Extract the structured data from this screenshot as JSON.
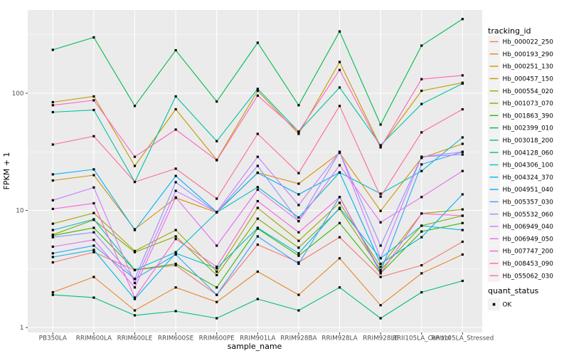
{
  "figure": {
    "background": "#FFFFFF",
    "panel_background": "#EBEBEB",
    "gridline_color": "#FFFFFF",
    "tick_color": "#333333",
    "tick_label_color": "#4D4D4D",
    "point_color": "#000000",
    "legend_key_background": "#F2F2F2"
  },
  "chart_data": {
    "type": "line",
    "title": "",
    "xlabel": "sample_name",
    "ylabel": "FPKM + 1",
    "y_scale": "log10",
    "y_ticks": [
      1,
      10,
      100
    ],
    "y_tick_labels": [
      "1",
      "10",
      "100"
    ],
    "y_minor_ticks": [
      3.1623,
      31.623,
      316.23
    ],
    "ylim": [
      0.9,
      540
    ],
    "grid": true,
    "legend_position": "right",
    "marker": "black-square",
    "legend_title": "tracking_id",
    "quant_legend": {
      "title": "quant_status",
      "items": [
        {
          "label": "OK",
          "marker": "black-square"
        }
      ]
    },
    "categories": [
      "PB350LA",
      "RRIM600LA",
      "RRIM600LE",
      "RRIM600SE",
      "RRIM600PE",
      "RRIM901LA",
      "RRIM928BA",
      "RRIM928LA",
      "RRIM928LE",
      "RRII105LA_Control",
      "RRII105LA_Stressed"
    ],
    "series": [
      {
        "name": "Hb_000022_250",
        "color": "#F8766D",
        "values": [
          3.6,
          4.4,
          3.1,
          3.4,
          1.9,
          5.1,
          3.6,
          5.9,
          2.7,
          3.4,
          5.4
        ]
      },
      {
        "name": "Hb_000193_290",
        "color": "#E88526",
        "values": [
          2.0,
          2.7,
          1.4,
          2.2,
          1.65,
          3.0,
          1.9,
          3.9,
          1.55,
          2.9,
          4.2
        ]
      },
      {
        "name": "Hb_000251_130",
        "color": "#D89000",
        "values": [
          18,
          20,
          6.9,
          12.8,
          9.6,
          21,
          16.9,
          31,
          9.9,
          28,
          37
        ]
      },
      {
        "name": "Hb_000457_150",
        "color": "#C09B00",
        "values": [
          84,
          94,
          24,
          73,
          27,
          105,
          45,
          185,
          35,
          105,
          123
        ]
      },
      {
        "name": "Hb_000554_020",
        "color": "#A3A500",
        "values": [
          7.7,
          9.5,
          4.5,
          6.8,
          3.0,
          10.5,
          5.5,
          11.6,
          3.3,
          9.4,
          10.2
        ]
      },
      {
        "name": "Hb_001073_070",
        "color": "#7CAE00",
        "values": [
          6.2,
          8.3,
          4.4,
          6.0,
          2.8,
          8.5,
          4.8,
          10.3,
          3.1,
          7.4,
          9.0
        ]
      },
      {
        "name": "Hb_001863_390",
        "color": "#39B600",
        "values": [
          6.1,
          7.1,
          3.1,
          3.5,
          2.2,
          7.0,
          4.1,
          7.8,
          2.9,
          6.6,
          7.8
        ]
      },
      {
        "name": "Hb_002399_010",
        "color": "#00BB4E",
        "values": [
          235,
          300,
          78,
          233,
          85,
          270,
          79,
          337,
          54,
          255,
          430
        ]
      },
      {
        "name": "Hb_003018_200",
        "color": "#00BF7D",
        "values": [
          1.9,
          1.8,
          1.27,
          1.38,
          1.2,
          1.75,
          1.4,
          2.2,
          1.2,
          2.0,
          2.5
        ]
      },
      {
        "name": "Hb_004128_060",
        "color": "#00C1A3",
        "values": [
          69,
          72,
          17.5,
          94,
          39,
          109,
          47,
          112,
          36,
          81,
          121
        ]
      },
      {
        "name": "Hb_004306_100",
        "color": "#00BFC4",
        "values": [
          6.8,
          8.4,
          3.1,
          4.4,
          9.6,
          15.8,
          8.7,
          21.1,
          13.9,
          21.7,
          42
        ]
      },
      {
        "name": "Hb_004324_370",
        "color": "#00BAE0",
        "values": [
          4.0,
          4.6,
          1.75,
          4.3,
          3.2,
          7.1,
          4.3,
          10.5,
          3.9,
          7.4,
          6.8
        ]
      },
      {
        "name": "Hb_004951_040",
        "color": "#00B0F6",
        "values": [
          20.3,
          22.4,
          6.8,
          19.7,
          9.7,
          20.9,
          13.7,
          21.1,
          3.5,
          5.9,
          13.7
        ]
      },
      {
        "name": "Hb_005357_030",
        "color": "#35A2FF",
        "values": [
          4.3,
          5.0,
          2.6,
          4.2,
          1.9,
          6.0,
          3.5,
          13.0,
          3.0,
          24.7,
          31.6
        ]
      },
      {
        "name": "Hb_005532_060",
        "color": "#9590FF",
        "values": [
          5.9,
          6.5,
          2.6,
          17.4,
          9.6,
          24.0,
          8.1,
          31.6,
          5.0,
          28.7,
          30.0
        ]
      },
      {
        "name": "Hb_006949_040",
        "color": "#C77CFF",
        "values": [
          12.2,
          15.7,
          2.4,
          14.7,
          9.7,
          28.7,
          11.1,
          31.6,
          3.9,
          28.7,
          31.6
        ]
      },
      {
        "name": "Hb_006949_050",
        "color": "#E76BF3",
        "values": [
          4.9,
          5.6,
          2.2,
          12.9,
          5.0,
          15.0,
          8.1,
          24.3,
          7.9,
          13.0,
          21.7
        ]
      },
      {
        "name": "Hb_007747_200",
        "color": "#FA62DB",
        "values": [
          10.3,
          11.5,
          1.8,
          5.7,
          3.3,
          12.0,
          6.5,
          13.0,
          2.9,
          9.4,
          9.0
        ]
      },
      {
        "name": "Hb_008453_090",
        "color": "#FF62BC",
        "values": [
          79,
          87,
          28.7,
          49,
          26.8,
          95.5,
          47,
          158,
          34.5,
          132,
          142
        ]
      },
      {
        "name": "Hb_055062_030",
        "color": "#FF6A98",
        "values": [
          36.5,
          43,
          17.5,
          22.7,
          12.6,
          45,
          20.8,
          78,
          13.1,
          46.4,
          73
        ]
      }
    ]
  }
}
